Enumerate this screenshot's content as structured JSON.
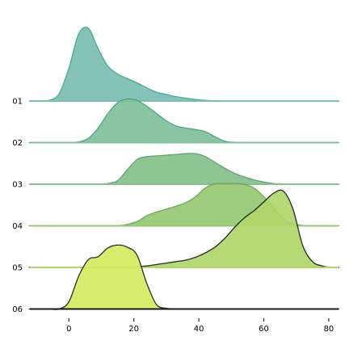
{
  "chart_data": {
    "type": "area",
    "title": "",
    "xlabel": "",
    "ylabel": "",
    "xlim": [
      -12,
      83
    ],
    "xticks": [
      0,
      20,
      40,
      60,
      80
    ],
    "x": [
      -15,
      -12,
      -9,
      -6,
      -3,
      0,
      3,
      6,
      9,
      12,
      15,
      18,
      21,
      24,
      27,
      30,
      33,
      36,
      39,
      42,
      45,
      48,
      51,
      54,
      57,
      60,
      63,
      66,
      69,
      72,
      75,
      78,
      81,
      84,
      87
    ],
    "series": [
      {
        "name": "01",
        "color": "#7dbdb2",
        "edge": "#2aa78e",
        "values": [
          0,
          0,
          0,
          0.01,
          0.1,
          0.45,
          0.92,
          1.0,
          0.72,
          0.48,
          0.37,
          0.31,
          0.25,
          0.18,
          0.12,
          0.09,
          0.06,
          0.04,
          0.02,
          0.01,
          0.004,
          0,
          0,
          0,
          0,
          0,
          0,
          0,
          0,
          0,
          0,
          0,
          0,
          0,
          0
        ]
      },
      {
        "name": "02",
        "color": "#80bf9a",
        "edge": "#3a9e72",
        "values": [
          0,
          0,
          0,
          0,
          0,
          0,
          0.01,
          0.06,
          0.2,
          0.4,
          0.55,
          0.6,
          0.58,
          0.5,
          0.4,
          0.3,
          0.23,
          0.2,
          0.18,
          0.15,
          0.08,
          0.02,
          0.005,
          0,
          0,
          0,
          0,
          0,
          0,
          0,
          0,
          0,
          0,
          0,
          0
        ]
      },
      {
        "name": "03",
        "color": "#86c08b",
        "edge": "#4e9c64",
        "values": [
          0,
          0,
          0,
          0,
          0,
          0,
          0,
          0,
          0,
          0.01,
          0.05,
          0.2,
          0.34,
          0.38,
          0.39,
          0.4,
          0.41,
          0.42,
          0.42,
          0.38,
          0.3,
          0.22,
          0.15,
          0.1,
          0.06,
          0.03,
          0.01,
          0.005,
          0,
          0,
          0,
          0,
          0,
          0,
          0
        ]
      },
      {
        "name": "04",
        "color": "#97c772",
        "edge": "#5d9d4e",
        "values": [
          0,
          0,
          0,
          0,
          0,
          0,
          0,
          0,
          0,
          0,
          0,
          0.02,
          0.06,
          0.14,
          0.19,
          0.23,
          0.27,
          0.32,
          0.4,
          0.52,
          0.58,
          0.58,
          0.58,
          0.57,
          0.52,
          0.4,
          0.25,
          0.1,
          0.03,
          0.005,
          0,
          0,
          0,
          0,
          0
        ]
      },
      {
        "name": "05",
        "color": "#aed66a",
        "edge": "#0a0a0a",
        "values": [
          0,
          0,
          0,
          0,
          0,
          0,
          0,
          0,
          0,
          0,
          0,
          0,
          0.01,
          0.02,
          0.04,
          0.06,
          0.08,
          0.1,
          0.14,
          0.2,
          0.28,
          0.4,
          0.55,
          0.68,
          0.78,
          0.9,
          1.02,
          1.05,
          0.8,
          0.3,
          0.08,
          0.02,
          0,
          0,
          0
        ]
      },
      {
        "name": "06",
        "color": "#d4e95f",
        "edge": "#0a0a0a",
        "values": [
          0,
          0,
          0,
          0,
          0,
          0.1,
          0.45,
          0.68,
          0.72,
          0.84,
          0.88,
          0.85,
          0.74,
          0.35,
          0.06,
          0.01,
          0,
          0,
          0,
          0,
          0,
          0,
          0,
          0,
          0,
          0,
          0,
          0,
          0,
          0,
          0,
          0,
          0,
          0,
          0
        ]
      }
    ]
  }
}
